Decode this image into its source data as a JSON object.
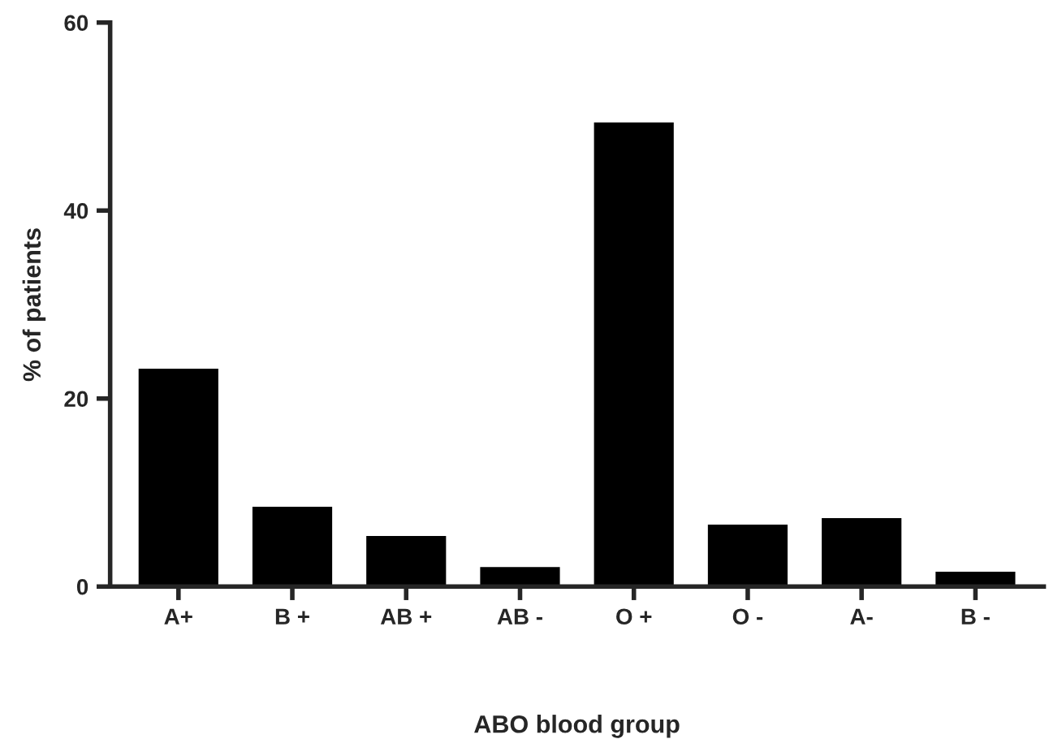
{
  "chart_data": {
    "type": "bar",
    "xlabel": "ABO blood group",
    "ylabel": "% of patients",
    "categories": [
      "A+",
      "B +",
      "AB +",
      "AB -",
      "O +",
      "O -",
      "A-",
      "B -"
    ],
    "values": [
      23.3,
      8.6,
      5.5,
      2.2,
      49.5,
      6.7,
      7.4,
      1.7
    ],
    "color": "#000000",
    "ylim": [
      0,
      60
    ],
    "yticks": [
      0,
      20,
      40,
      60
    ],
    "grid": false
  }
}
